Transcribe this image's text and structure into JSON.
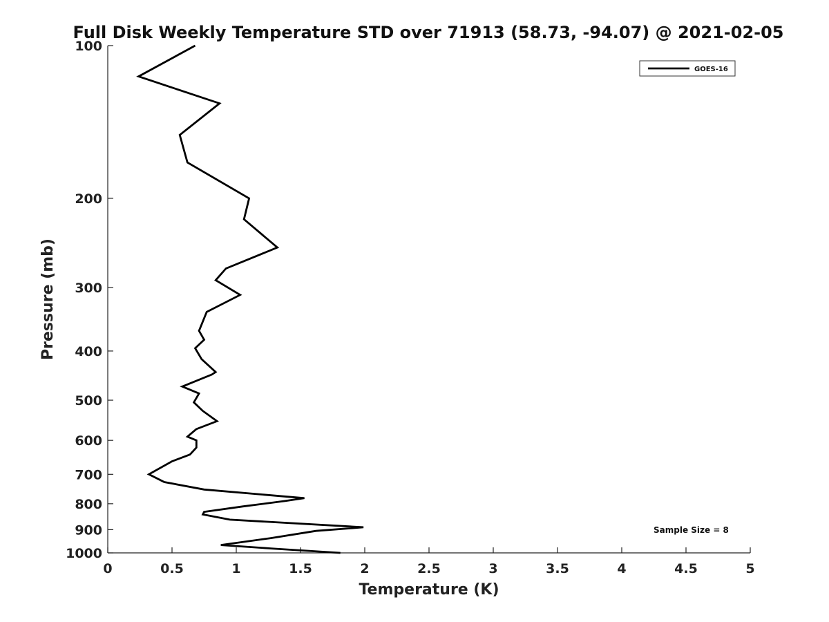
{
  "chart_data": {
    "type": "line",
    "title": "Full Disk Weekly Temperature STD over 71913 (58.73, -94.07) @ 2021-02-05",
    "xlabel": "Temperature (K)",
    "ylabel": "Pressure (mb)",
    "xlim": [
      0,
      5
    ],
    "ylim": [
      1000,
      100
    ],
    "y_scale": "log",
    "y_reversed": true,
    "x_ticks": [
      "0",
      "0.5",
      "1",
      "1.5",
      "2",
      "2.5",
      "3",
      "3.5",
      "4",
      "4.5",
      "5"
    ],
    "y_ticks": [
      "100",
      "200",
      "300",
      "400",
      "500",
      "600",
      "700",
      "800",
      "900",
      "1000"
    ],
    "grid": false,
    "legend_position": "top-right",
    "series": [
      {
        "name": "GOES-16",
        "color": "#000000",
        "x": [
          0.68,
          0.24,
          0.87,
          0.56,
          0.62,
          1.1,
          1.06,
          1.32,
          0.92,
          0.84,
          1.03,
          0.77,
          0.71,
          0.75,
          0.68,
          0.73,
          0.84,
          0.81,
          0.58,
          0.71,
          0.67,
          0.74,
          0.85,
          0.69,
          0.62,
          0.69,
          0.69,
          0.64,
          0.5,
          0.32,
          0.44,
          0.75,
          1.53,
          1.38,
          1.05,
          0.75,
          0.74,
          0.95,
          1.99,
          1.62,
          1.27,
          0.88,
          1.27,
          1.81
        ],
        "y": [
          100,
          115,
          130,
          150,
          170,
          200,
          220,
          250,
          275,
          290,
          310,
          335,
          365,
          380,
          395,
          415,
          440,
          445,
          470,
          485,
          505,
          525,
          550,
          570,
          590,
          600,
          620,
          640,
          660,
          700,
          725,
          750,
          780,
          790,
          810,
          830,
          840,
          860,
          890,
          905,
          935,
          965,
          980,
          1000
        ]
      }
    ],
    "annotations": [
      "Sample Size = 8"
    ]
  }
}
